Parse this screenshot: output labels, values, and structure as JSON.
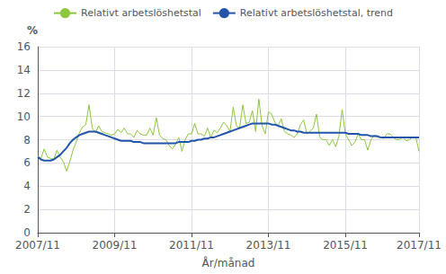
{
  "chart_data": {
    "type": "line",
    "ylabel": "%",
    "xlabel": "År/månad",
    "categories": [
      "2007/11",
      null,
      null,
      null,
      null,
      null,
      null,
      null,
      null,
      null,
      null,
      null,
      null,
      null,
      null,
      null,
      null,
      null,
      null,
      null,
      null,
      null,
      null,
      null,
      "2009/11",
      null,
      null,
      null,
      null,
      null,
      null,
      null,
      null,
      null,
      null,
      null,
      null,
      null,
      null,
      null,
      null,
      null,
      null,
      null,
      null,
      null,
      null,
      null,
      "2011/11",
      null,
      null,
      null,
      null,
      null,
      null,
      null,
      null,
      null,
      null,
      null,
      null,
      null,
      null,
      null,
      null,
      null,
      null,
      null,
      null,
      null,
      null,
      null,
      "2013/11",
      null,
      null,
      null,
      null,
      null,
      null,
      null,
      null,
      null,
      null,
      null,
      null,
      null,
      null,
      null,
      null,
      null,
      null,
      null,
      null,
      null,
      null,
      null,
      "2015/11",
      null,
      null,
      null,
      null,
      null,
      null,
      null,
      null,
      null,
      null,
      null,
      null,
      null,
      null,
      null,
      null,
      null,
      null,
      null,
      null,
      null,
      null,
      "2017/11"
    ],
    "series": [
      {
        "name": "Relativt arbetslöshetstal",
        "color": "#8DC63F",
        "values": [
          6.6,
          6.4,
          7.2,
          6.5,
          6.4,
          6.3,
          7.1,
          6.5,
          6.1,
          5.3,
          6.1,
          7.1,
          7.8,
          8.6,
          9.1,
          9.3,
          11.0,
          9.0,
          8.6,
          9.2,
          8.7,
          8.6,
          8.5,
          8.4,
          8.5,
          8.9,
          8.6,
          9.0,
          8.5,
          8.5,
          8.2,
          8.8,
          8.5,
          8.4,
          8.4,
          9.0,
          8.4,
          9.9,
          8.4,
          8.1,
          8.0,
          7.5,
          7.2,
          7.6,
          8.2,
          7.0,
          8.0,
          8.5,
          8.5,
          9.4,
          8.5,
          8.5,
          8.3,
          9.0,
          8.2,
          8.8,
          8.6,
          9.0,
          9.5,
          9.2,
          8.7,
          10.8,
          9.2,
          9.0,
          11.0,
          9.4,
          9.5,
          10.5,
          8.7,
          11.5,
          9.2,
          8.5,
          10.4,
          10.2,
          9.5,
          9.2,
          9.8,
          8.7,
          8.5,
          8.4,
          8.2,
          8.5,
          9.3,
          9.7,
          8.5,
          8.7,
          9.0,
          10.2,
          8.2,
          8.0,
          8.0,
          7.5,
          8.0,
          7.4,
          8.3,
          10.6,
          8.5,
          8.0,
          7.5,
          7.8,
          8.5,
          8.0,
          8.0,
          7.1,
          8.0,
          8.4,
          8.2,
          8.2,
          8.1,
          8.5,
          8.5,
          8.2,
          8.0,
          8.0,
          8.2,
          7.9,
          8.0,
          8.2,
          8.2,
          7.0
        ]
      },
      {
        "name": "Relativt arbetslöshetstal, trend",
        "color": "#2255AA",
        "values": [
          6.5,
          6.3,
          6.2,
          6.2,
          6.2,
          6.3,
          6.5,
          6.7,
          7.0,
          7.3,
          7.7,
          8.0,
          8.2,
          8.4,
          8.5,
          8.6,
          8.7,
          8.7,
          8.7,
          8.6,
          8.5,
          8.4,
          8.3,
          8.2,
          8.1,
          8.0,
          7.9,
          7.9,
          7.9,
          7.9,
          7.8,
          7.8,
          7.8,
          7.7,
          7.7,
          7.7,
          7.7,
          7.7,
          7.7,
          7.7,
          7.7,
          7.7,
          7.7,
          7.7,
          7.8,
          7.8,
          7.8,
          7.8,
          7.9,
          7.9,
          8.0,
          8.0,
          8.1,
          8.1,
          8.2,
          8.2,
          8.3,
          8.4,
          8.5,
          8.6,
          8.7,
          8.8,
          8.9,
          9.0,
          9.1,
          9.2,
          9.3,
          9.4,
          9.4,
          9.4,
          9.4,
          9.4,
          9.4,
          9.3,
          9.3,
          9.2,
          9.1,
          9.0,
          8.9,
          8.8,
          8.8,
          8.7,
          8.7,
          8.6,
          8.6,
          8.6,
          8.6,
          8.6,
          8.6,
          8.6,
          8.6,
          8.6,
          8.6,
          8.6,
          8.6,
          8.6,
          8.6,
          8.5,
          8.5,
          8.5,
          8.5,
          8.4,
          8.4,
          8.4,
          8.3,
          8.3,
          8.3,
          8.2,
          8.2,
          8.2,
          8.2,
          8.2,
          8.2,
          8.2,
          8.2,
          8.2,
          8.2,
          8.2,
          8.2,
          8.2
        ]
      }
    ],
    "ylim": [
      0,
      16
    ],
    "yticks": [
      0,
      2,
      4,
      6,
      8,
      10,
      12,
      14,
      16
    ],
    "grid": true,
    "legend": "top"
  }
}
